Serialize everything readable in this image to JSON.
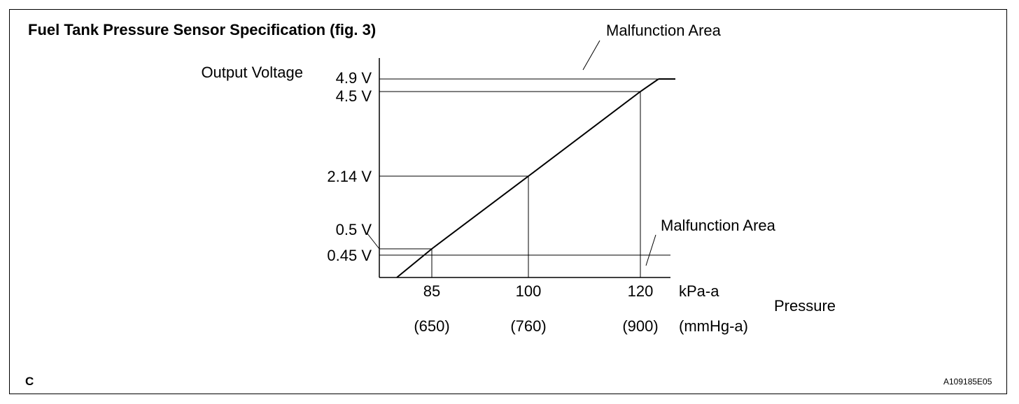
{
  "figure": {
    "title": "Fuel Tank Pressure Sensor Specification (fig. 3)",
    "corner_label": "C",
    "figure_code": "A109185E05"
  },
  "chart_data": {
    "type": "line",
    "title": "Fuel Tank Pressure Sensor Specification (fig. 3)",
    "ylabel": "Output Voltage",
    "xlabel": "Pressure",
    "x_unit_primary": "kPa-a",
    "x_unit_secondary": "(mmHg-a)",
    "x_ticks": [
      {
        "kpa": 85,
        "label": "85",
        "sub": "(650)"
      },
      {
        "kpa": 100,
        "label": "100",
        "sub": "(760)"
      },
      {
        "kpa": 120,
        "label": "120",
        "sub": "(900)"
      }
    ],
    "y_ticks": [
      {
        "v": 4.9,
        "label": "4.9 V"
      },
      {
        "v": 4.5,
        "label": "4.5 V"
      },
      {
        "v": 2.14,
        "label": "2.14 V"
      },
      {
        "v": 0.5,
        "label": "0.5 V"
      },
      {
        "v": 0.45,
        "label": "0.45 V"
      }
    ],
    "series": [
      {
        "x": [
          79.5,
          85,
          100,
          120,
          123
        ],
        "y": [
          0.1,
          0.5,
          2.14,
          4.5,
          4.9
        ]
      }
    ],
    "saturation": {
      "from_kpa": 123,
      "to_kpa": 126,
      "v": 4.9
    },
    "annotations": [
      {
        "text": "Malfunction Area",
        "region": "upper"
      },
      {
        "text": "Malfunction Area",
        "region": "lower"
      }
    ]
  }
}
